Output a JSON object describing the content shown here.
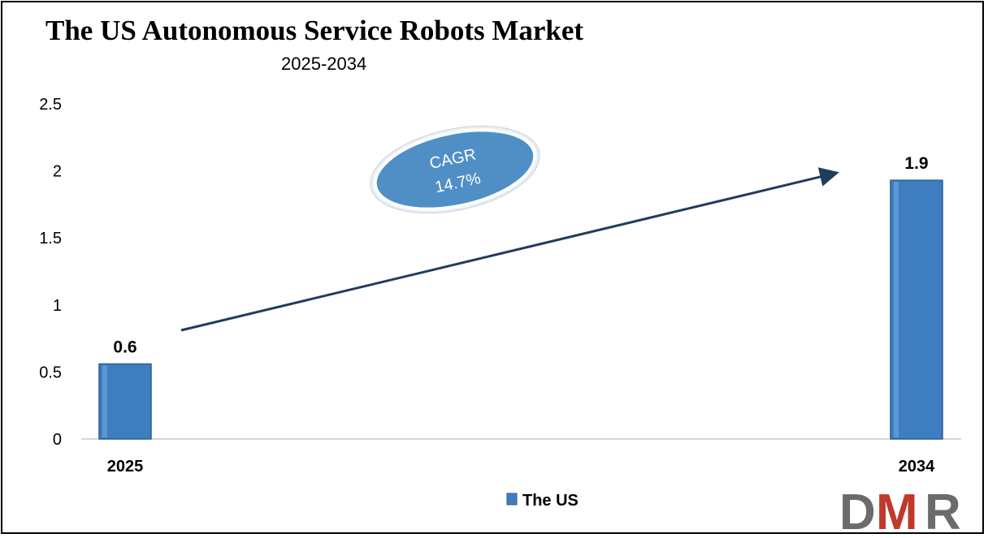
{
  "chart_data": {
    "type": "bar",
    "title": "The US Autonomous Service Robots Market",
    "subtitle": "2025-2034",
    "categories": [
      "2025",
      "2034"
    ],
    "series": [
      {
        "name": "The US",
        "values": [
          0.56,
          1.93
        ],
        "data_labels": [
          "0.6",
          "1.9"
        ]
      }
    ],
    "ylim": [
      0,
      2.5
    ],
    "yticks": [
      "0",
      "0.5",
      "1",
      "1.5",
      "2",
      "2.5"
    ],
    "ytick_values": [
      0,
      0.5,
      1,
      1.5,
      2,
      2.5
    ],
    "grid": false,
    "legend_position": "bottom",
    "annotation": {
      "line1": "CAGR",
      "line2": "14.7%"
    },
    "colors": {
      "bar": "#3d7dc0",
      "bar_edge": "#2a5f96",
      "arrow": "#1f3d5c",
      "ellipse": "#4f8fc6"
    }
  },
  "logo": {
    "text": "DMR",
    "color_d": "#6b6b6b",
    "color_m": "#c0392b",
    "color_r": "#6b6b6b"
  }
}
